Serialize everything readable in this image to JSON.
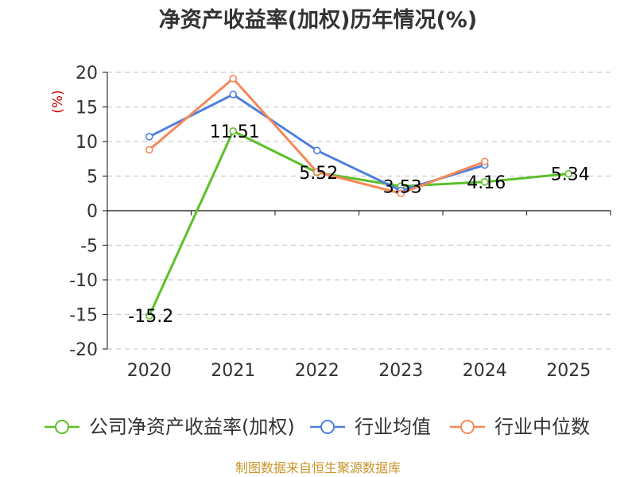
{
  "chart_data": {
    "type": "line",
    "title": "净资产收益率(加权)历年情况(%)",
    "ylabel": "(%)",
    "categories": [
      "2020",
      "2021",
      "2022",
      "2023",
      "2024",
      "2025"
    ],
    "ylim": [
      -20,
      20
    ],
    "yticks": [
      20,
      15,
      10,
      5,
      0,
      -5,
      -10,
      -15,
      -20
    ],
    "grid": "dashed-horizontal",
    "legend_position": "bottom",
    "series": [
      {
        "name": "公司净资产收益率(加权)",
        "color": "#5cbf2a",
        "values": [
          -15.2,
          11.51,
          5.52,
          3.53,
          4.16,
          5.34
        ],
        "labels": [
          "-15.2",
          "11.51",
          "5.52",
          "3.53",
          "4.16",
          "5.34"
        ]
      },
      {
        "name": "行业均值",
        "color": "#4f7fde",
        "values": [
          10.7,
          16.8,
          8.7,
          2.9,
          6.6,
          null
        ]
      },
      {
        "name": "行业中位数",
        "color": "#f5895a",
        "values": [
          8.8,
          19.1,
          5.6,
          2.5,
          7.1,
          null
        ]
      }
    ]
  },
  "source": "制图数据来自恒生聚源数据库"
}
